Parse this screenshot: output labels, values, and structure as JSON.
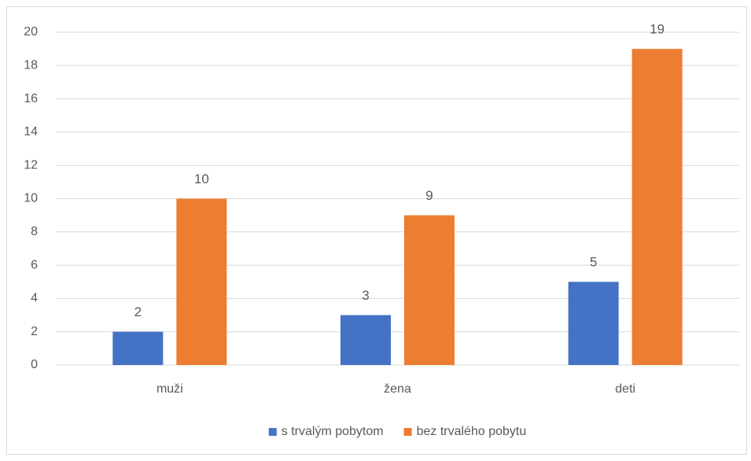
{
  "chart_data": {
    "type": "bar",
    "categories": [
      "muži",
      "žena",
      "deti"
    ],
    "series": [
      {
        "name": "s trvalým pobytom",
        "color": "#4472c4",
        "values": [
          2,
          3,
          5
        ]
      },
      {
        "name": "bez trvalého pobytu",
        "color": "#ed7d31",
        "values": [
          10,
          9,
          19
        ]
      }
    ],
    "ylim": [
      0,
      20
    ],
    "yticks": [
      0,
      2,
      4,
      6,
      8,
      10,
      12,
      14,
      16,
      18,
      20
    ],
    "grid": true,
    "legend": "bottom"
  }
}
